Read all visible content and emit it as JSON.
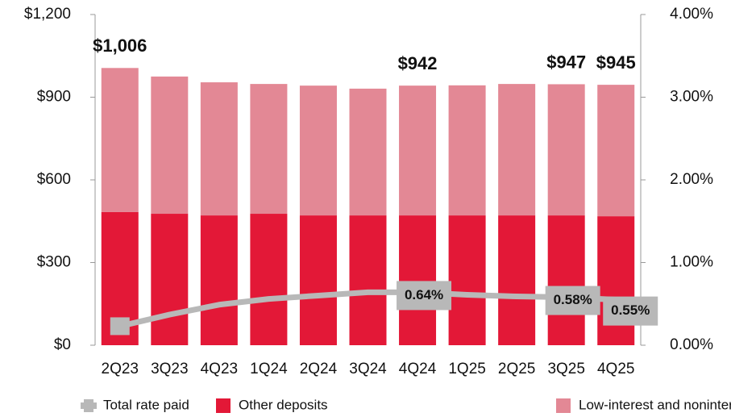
{
  "chart_data": {
    "type": "bar",
    "stacked": true,
    "categories": [
      "2Q23",
      "3Q23",
      "4Q23",
      "1Q24",
      "2Q24",
      "3Q24",
      "4Q24",
      "1Q25",
      "2Q25",
      "3Q25",
      "4Q25"
    ],
    "series": [
      {
        "name": "Other deposits",
        "color": "#e31837",
        "values": [
          483,
          477,
          471,
          477,
          471,
          471,
          471,
          471,
          471,
          471,
          468
        ]
      },
      {
        "name": "Low-interest and noninterest checking",
        "color": "#e38895",
        "values": [
          523,
          498,
          483,
          471,
          471,
          460,
          471,
          472,
          477,
          476,
          477
        ]
      },
      {
        "name": "Total rate paid",
        "type": "line",
        "axis": "y2",
        "color": "#b8b8b8",
        "values": [
          0.23,
          0.37,
          0.49,
          0.56,
          0.6,
          0.64,
          0.64,
          0.61,
          0.59,
          0.58,
          0.55
        ],
        "value_labels": [
          null,
          null,
          null,
          null,
          null,
          null,
          "0.64%",
          null,
          null,
          "0.58%",
          "0.55%"
        ]
      }
    ],
    "totals": {
      "values": [
        1006,
        null,
        null,
        null,
        null,
        null,
        942,
        null,
        null,
        947,
        945
      ],
      "value_labels": [
        "$1,006",
        null,
        null,
        null,
        null,
        null,
        "$942",
        null,
        null,
        "$947",
        "$945"
      ]
    },
    "ylim": [
      0,
      1200
    ],
    "yticks": [
      {
        "value": 0,
        "label": "$0"
      },
      {
        "value": 300,
        "label": "$300"
      },
      {
        "value": 600,
        "label": "$600"
      },
      {
        "value": 900,
        "label": "$900"
      },
      {
        "value": 1200,
        "label": "$1,200"
      }
    ],
    "y2lim": [
      0,
      4
    ],
    "y2ticks": [
      {
        "value": 0,
        "label": "0.00%"
      },
      {
        "value": 1,
        "label": "1.00%"
      },
      {
        "value": 2,
        "label": "2.00%"
      },
      {
        "value": 3,
        "label": "3.00%"
      },
      {
        "value": 4,
        "label": "4.00%"
      }
    ],
    "legend": "bottom"
  }
}
